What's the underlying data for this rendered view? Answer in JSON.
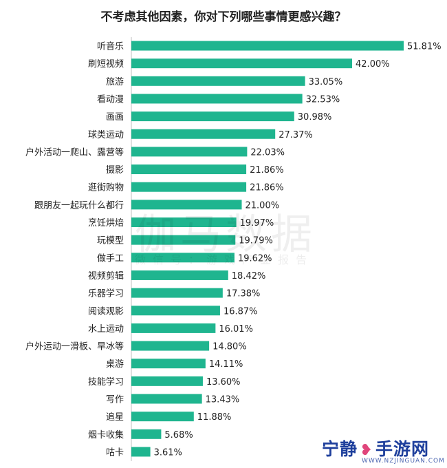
{
  "chart_data": {
    "type": "bar",
    "orientation": "horizontal",
    "title": "不考虑其他因素，你对下列哪些事情更感兴趣？",
    "bar_color": "#1fb58f",
    "categories": [
      "听音乐",
      "刷短视频",
      "旅游",
      "看动漫",
      "画画",
      "球类运动",
      "户外活动一爬山、露营等",
      "摄影",
      "逛街购物",
      "跟朋友一起玩什么都行",
      "烹饪烘焙",
      "玩模型",
      "做手工",
      "视频剪辑",
      "乐器学习",
      "阅读观影",
      "水上运动",
      "户外运动一滑板、旱冰等",
      "桌游",
      "技能学习",
      "写作",
      "追星",
      "烟卡收集",
      "咕卡"
    ],
    "values": [
      51.81,
      42.0,
      33.05,
      32.53,
      30.98,
      27.37,
      22.03,
      21.86,
      21.86,
      21.0,
      19.97,
      19.79,
      19.62,
      18.42,
      17.38,
      16.87,
      16.01,
      14.8,
      14.11,
      13.6,
      13.43,
      11.88,
      5.68,
      3.61
    ],
    "labels": [
      "51.81%",
      "42.00%",
      "33.05%",
      "32.53%",
      "30.98%",
      "27.37%",
      "22.03%",
      "21.86%",
      "21.86%",
      "21.00%",
      "19.97%",
      "19.79%",
      "19.62%",
      "18.42%",
      "17.38%",
      "16.87%",
      "16.01%",
      "14.80%",
      "14.11%",
      "13.60%",
      "13.43%",
      "11.88%",
      "5.68%",
      "3.61%"
    ],
    "xlim": [
      0,
      51.81
    ],
    "grid": false,
    "legend": "none"
  },
  "watermark": {
    "main": "伽马数据",
    "sub": "微信号：游戏产业报告"
  },
  "logo": {
    "text_left": "宁静",
    "icon": "heart-icon",
    "text_right": "手游网",
    "url_text": "WWW.NZJINGUAN.COM",
    "color": "#1e3f9c",
    "icon_color": "#e0457b"
  }
}
